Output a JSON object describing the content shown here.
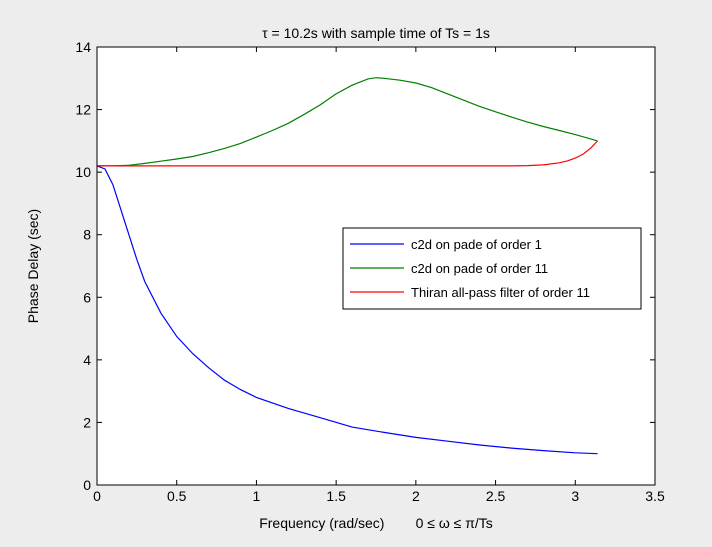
{
  "chart_data": {
    "type": "line",
    "title": "τ = 10.2s with sample time of Ts = 1s",
    "xlabel": "Frequency (rad/sec)        0 ≤ ω ≤ π/Ts",
    "ylabel": "Phase Delay (sec)",
    "xlim": [
      0,
      3.5
    ],
    "ylim": [
      0,
      14
    ],
    "xticks": [
      0,
      0.5,
      1,
      1.5,
      2,
      2.5,
      3,
      3.5
    ],
    "yticks": [
      0,
      2,
      4,
      6,
      8,
      10,
      12,
      14
    ],
    "xtick_labels": [
      "0",
      "0.5",
      "1",
      "1.5",
      "2",
      "2.5",
      "3",
      "3.5"
    ],
    "ytick_labels": [
      "0",
      "2",
      "4",
      "6",
      "8",
      "10",
      "12",
      "14"
    ],
    "grid": false,
    "legend_position": "right",
    "colors": {
      "background": "#ededed",
      "plot_bg": "#ffffff",
      "axes": "#000000"
    },
    "series": [
      {
        "name": "c2d on pade of order 1",
        "color": "#0000ff",
        "x": [
          0,
          0.05,
          0.1,
          0.15,
          0.2,
          0.25,
          0.3,
          0.4,
          0.5,
          0.6,
          0.7,
          0.8,
          0.9,
          1.0,
          1.2,
          1.4,
          1.6,
          1.8,
          2.0,
          2.2,
          2.4,
          2.6,
          2.8,
          3.0,
          3.14
        ],
        "values": [
          10.2,
          10.1,
          9.6,
          8.8,
          8.0,
          7.2,
          6.5,
          5.5,
          4.75,
          4.2,
          3.75,
          3.35,
          3.05,
          2.8,
          2.45,
          2.15,
          1.85,
          1.68,
          1.52,
          1.4,
          1.28,
          1.18,
          1.1,
          1.03,
          1.0
        ]
      },
      {
        "name": "c2d on pade of order 11",
        "color": "#008000",
        "x": [
          0,
          0.1,
          0.2,
          0.3,
          0.4,
          0.5,
          0.6,
          0.7,
          0.8,
          0.9,
          1.0,
          1.1,
          1.2,
          1.3,
          1.4,
          1.5,
          1.6,
          1.7,
          1.75,
          1.8,
          1.9,
          2.0,
          2.1,
          2.2,
          2.3,
          2.4,
          2.5,
          2.6,
          2.7,
          2.8,
          2.9,
          3.0,
          3.14
        ],
        "values": [
          10.2,
          10.2,
          10.22,
          10.28,
          10.35,
          10.42,
          10.5,
          10.62,
          10.76,
          10.92,
          11.12,
          11.33,
          11.56,
          11.85,
          12.15,
          12.5,
          12.78,
          12.98,
          13.02,
          13.0,
          12.94,
          12.85,
          12.7,
          12.5,
          12.3,
          12.1,
          11.93,
          11.76,
          11.6,
          11.46,
          11.33,
          11.2,
          11.0
        ]
      },
      {
        "name": "Thiran all-pass filter of order 11",
        "color": "#ff0000",
        "x": [
          0,
          0.5,
          1.0,
          1.5,
          2.0,
          2.5,
          2.6,
          2.7,
          2.8,
          2.9,
          2.95,
          3.0,
          3.05,
          3.1,
          3.14
        ],
        "values": [
          10.2,
          10.2,
          10.2,
          10.2,
          10.2,
          10.2,
          10.2,
          10.21,
          10.23,
          10.3,
          10.36,
          10.45,
          10.58,
          10.78,
          11.0
        ]
      }
    ]
  }
}
